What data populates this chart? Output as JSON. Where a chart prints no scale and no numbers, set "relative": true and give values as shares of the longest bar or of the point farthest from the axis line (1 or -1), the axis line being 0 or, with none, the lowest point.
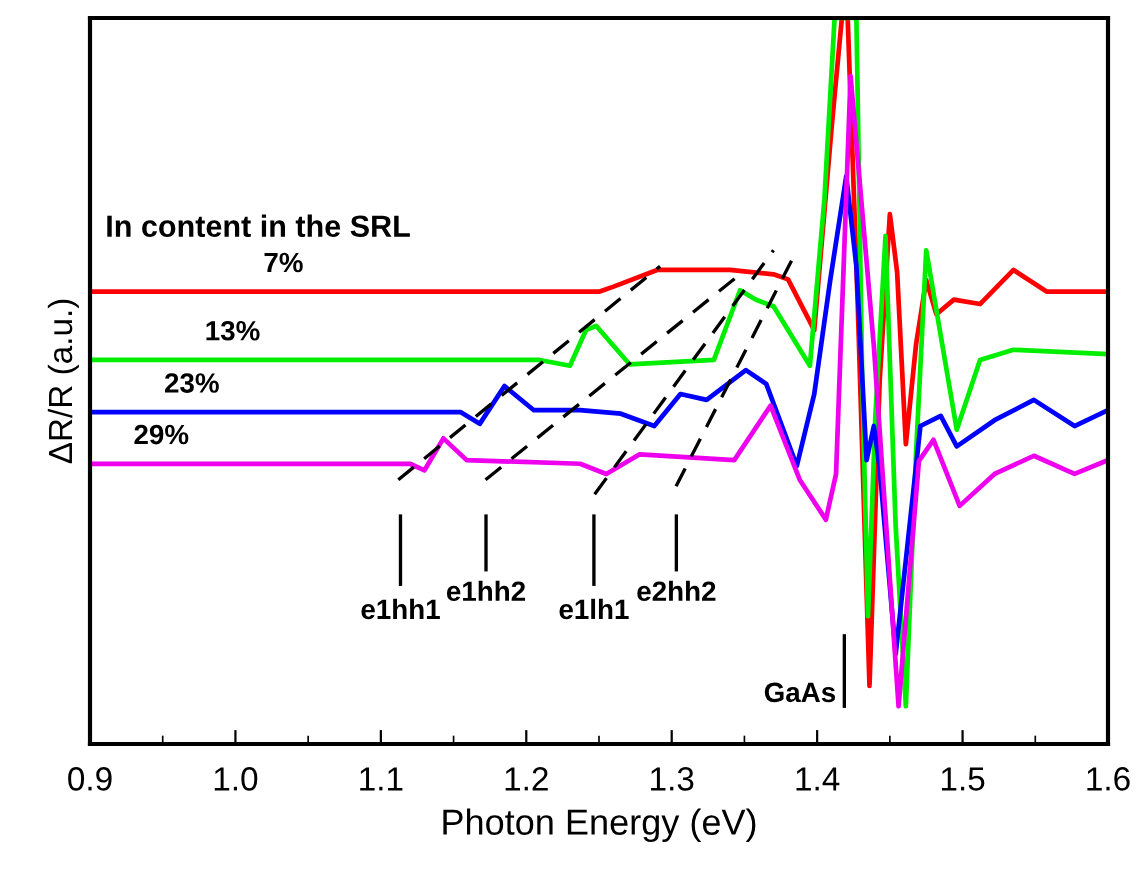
{
  "chart_data": {
    "type": "line",
    "relative": true,
    "xlabel": "Photon Energy (eV)",
    "ylabel": "ΔR/R (a.u.)",
    "xlim": [
      0.9,
      1.6
    ],
    "xticks": [
      0.9,
      {
        "value": 1.0,
        "label": "1.0"
      },
      1.1,
      1.2,
      1.3,
      1.4,
      1.5,
      1.6
    ],
    "tick_labels": "x",
    "grid": false,
    "legend": false,
    "line_style": "solid",
    "marker": "none",
    "series": [
      {
        "name": "7%",
        "color": "#ff0000",
        "x": [
          0.9,
          1.25,
          1.26,
          1.29,
          1.34,
          1.37,
          1.38,
          1.398,
          1.41,
          1.417,
          1.421,
          1.428,
          1.436,
          1.443,
          1.45,
          1.455,
          1.461,
          1.468,
          1.475,
          1.482,
          1.494,
          1.512,
          1.535,
          1.558,
          1.6
        ],
        "values": [
          0.623,
          0.623,
          0.63,
          0.653,
          0.653,
          0.647,
          0.64,
          0.57,
          0.85,
          1.0,
          1.0,
          0.6,
          0.08,
          0.5,
          0.73,
          0.65,
          0.413,
          0.55,
          0.639,
          0.592,
          0.612,
          0.606,
          0.653,
          0.623,
          0.623
        ]
      },
      {
        "name": "13%",
        "color": "#00ee00",
        "x": [
          0.9,
          1.209,
          1.23,
          1.241,
          1.248,
          1.271,
          1.329,
          1.347,
          1.358,
          1.37,
          1.395,
          1.405,
          1.412,
          1.427,
          1.431,
          1.435,
          1.44,
          1.447,
          1.454,
          1.461,
          1.468,
          1.475,
          1.496,
          1.512,
          1.535,
          1.6
        ],
        "values": [
          0.529,
          0.529,
          0.521,
          0.57,
          0.576,
          0.523,
          0.529,
          0.625,
          0.612,
          0.603,
          0.521,
          0.75,
          1.0,
          1.0,
          0.5,
          0.176,
          0.45,
          0.7,
          0.3,
          0.052,
          0.4,
          0.68,
          0.433,
          0.529,
          0.543,
          0.537
        ]
      },
      {
        "name": "23%",
        "color": "#0000ff",
        "x": [
          0.9,
          1.155,
          1.168,
          1.185,
          1.205,
          1.237,
          1.265,
          1.288,
          1.306,
          1.324,
          1.351,
          1.365,
          1.386,
          1.398,
          1.409,
          1.42,
          1.427,
          1.434,
          1.439,
          1.443,
          1.454,
          1.471,
          1.485,
          1.496,
          1.522,
          1.549,
          1.577,
          1.6
        ],
        "values": [
          0.457,
          0.457,
          0.441,
          0.493,
          0.46,
          0.46,
          0.455,
          0.438,
          0.482,
          0.474,
          0.515,
          0.496,
          0.383,
          0.482,
          0.639,
          0.782,
          0.658,
          0.391,
          0.438,
          0.38,
          0.124,
          0.438,
          0.452,
          0.41,
          0.446,
          0.474,
          0.438,
          0.46
        ]
      },
      {
        "name": "29%",
        "color": "#ee00ee",
        "x": [
          0.9,
          1.12,
          1.13,
          1.143,
          1.159,
          1.237,
          1.255,
          1.278,
          1.343,
          1.368,
          1.388,
          1.406,
          1.413,
          1.423,
          1.439,
          1.456,
          1.47,
          1.48,
          1.498,
          1.522,
          1.549,
          1.577,
          1.6
        ],
        "values": [
          0.386,
          0.386,
          0.377,
          0.421,
          0.391,
          0.386,
          0.372,
          0.399,
          0.391,
          0.466,
          0.364,
          0.309,
          0.372,
          0.92,
          0.548,
          0.052,
          0.39,
          0.419,
          0.328,
          0.372,
          0.397,
          0.372,
          0.391
        ]
      },
      {
        "color": "#000000",
        "line_style": "dashed",
        "x": [
          1.112,
          1.292
        ],
        "values": [
          0.364,
          0.658
        ]
      },
      {
        "color": "#000000",
        "line_style": "dashed",
        "x": [
          1.172,
          1.347
        ],
        "values": [
          0.364,
          0.647
        ]
      },
      {
        "color": "#000000",
        "line_style": "dashed",
        "x": [
          1.247,
          1.37
        ],
        "values": [
          0.344,
          0.68
        ]
      },
      {
        "color": "#000000",
        "line_style": "dashed",
        "x": [
          1.303,
          1.384
        ],
        "values": [
          0.355,
          0.672
        ]
      }
    ],
    "annotations": [
      "In content in the SRL",
      "e1hh1",
      "e1hh2",
      "e1lh1",
      "e2hh2",
      "GaAs"
    ]
  }
}
